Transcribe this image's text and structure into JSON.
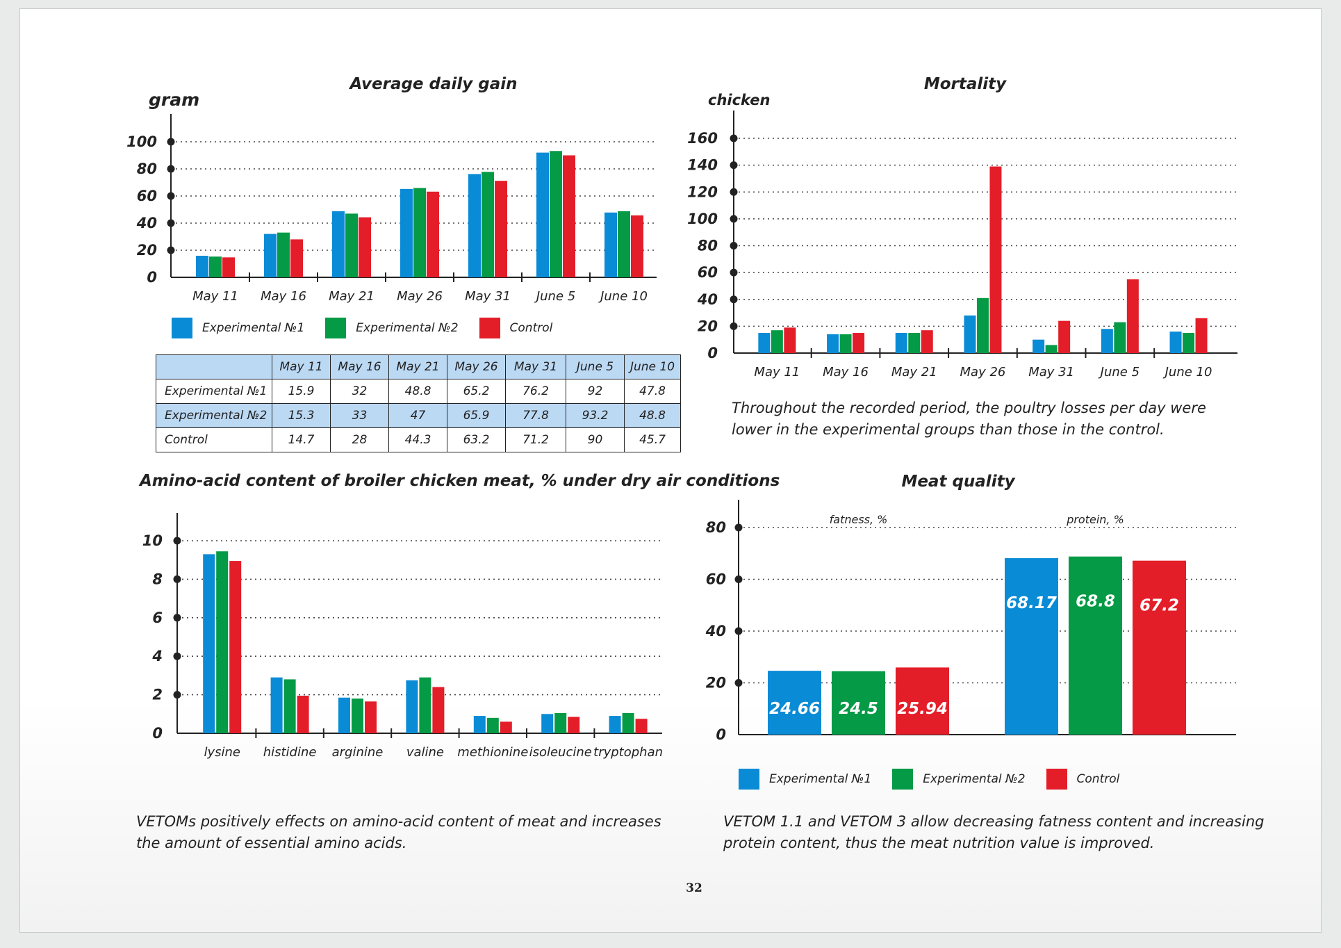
{
  "colors": {
    "exp1": "#0a8bd6",
    "exp2": "#059a45",
    "control": "#e31e29",
    "axis": "#222222",
    "table_shade": "#bcd9f4"
  },
  "series_names": [
    "Experimental №1",
    "Experimental №2",
    "Control"
  ],
  "page_number": "32",
  "chart_data": [
    {
      "type": "bar",
      "title": "Average daily gain",
      "ylabel": "gram",
      "xlabel": "",
      "categories": [
        "May 11",
        "May 16",
        "May 21",
        "May 26",
        "May 31",
        "June 5",
        "June 10"
      ],
      "series": [
        {
          "name": "Experimental №1",
          "values": [
            15.9,
            32,
            48.8,
            65.2,
            76.2,
            92,
            47.8
          ]
        },
        {
          "name": "Experimental №2",
          "values": [
            15.3,
            33,
            47,
            65.9,
            77.8,
            93.2,
            48.8
          ]
        },
        {
          "name": "Control",
          "values": [
            14.7,
            28,
            44.3,
            63.2,
            71.2,
            90,
            45.7
          ]
        }
      ],
      "ylim": [
        0,
        100
      ],
      "yticks": [
        "0",
        "20",
        "40",
        "60",
        "80",
        "100"
      ],
      "grid": true,
      "legend": "bottom"
    },
    {
      "type": "bar",
      "title": "Mortality",
      "ylabel": "chicken",
      "xlabel": "",
      "categories": [
        "May 11",
        "May 16",
        "May 21",
        "May 26",
        "May 31",
        "June 5",
        "June 10"
      ],
      "series": [
        {
          "name": "Experimental №1",
          "values": [
            15,
            14,
            15,
            28,
            10,
            18,
            16
          ]
        },
        {
          "name": "Experimental №2",
          "values": [
            17,
            14,
            15,
            41,
            6,
            23,
            15
          ]
        },
        {
          "name": "Control",
          "values": [
            19,
            15,
            17,
            139,
            24,
            55,
            26
          ]
        }
      ],
      "ylim": [
        0,
        160
      ],
      "yticks": [
        "0",
        "20",
        "40",
        "60",
        "80",
        "100",
        "120",
        "140",
        "160"
      ],
      "grid": true
    },
    {
      "type": "bar",
      "title": "Amino-acid content of broiler chicken meat, % under dry air conditions",
      "ylabel": "",
      "xlabel": "",
      "categories": [
        "lysine",
        "histidine",
        "arginine",
        "valine",
        "methionine",
        "isoleucine",
        "tryptophan"
      ],
      "series": [
        {
          "name": "Experimental №1",
          "values": [
            9.3,
            2.9,
            1.85,
            2.75,
            0.9,
            1.0,
            0.9
          ]
        },
        {
          "name": "Experimental №2",
          "values": [
            9.45,
            2.8,
            1.8,
            2.9,
            0.8,
            1.05,
            1.05
          ]
        },
        {
          "name": "Control",
          "values": [
            8.95,
            1.95,
            1.65,
            2.4,
            0.6,
            0.85,
            0.75
          ]
        }
      ],
      "ylim": [
        0,
        10
      ],
      "yticks": [
        "0",
        "2",
        "4",
        "6",
        "8",
        "10"
      ],
      "grid": true
    },
    {
      "type": "bar",
      "title": "Meat quality",
      "ylabel": "",
      "xlabel": "",
      "categories": [
        "fatness, %",
        "protein, %"
      ],
      "series": [
        {
          "name": "Experimental №1",
          "values": [
            24.66,
            68.17
          ]
        },
        {
          "name": "Experimental №2",
          "values": [
            24.5,
            68.8
          ]
        },
        {
          "name": "Control",
          "values": [
            25.94,
            67.2
          ]
        }
      ],
      "value_labels": [
        [
          "24.66",
          "68.17"
        ],
        [
          "24.5",
          "68.8"
        ],
        [
          "25.94",
          "67.2"
        ]
      ],
      "ylim": [
        0,
        80
      ],
      "yticks": [
        "0",
        "20",
        "40",
        "60",
        "80"
      ],
      "grid": true,
      "legend": "bottom"
    }
  ],
  "table": {
    "headers": [
      "",
      "May 11",
      "May 16",
      "May 21",
      "May 26",
      "May 31",
      "June 5",
      "June 10"
    ],
    "rows": [
      {
        "label": "Experimental №1",
        "cells": [
          "15.9",
          "32",
          "48.8",
          "65.2",
          "76.2",
          "92",
          "47.8"
        ]
      },
      {
        "label": "Experimental №2",
        "cells": [
          "15.3",
          "33",
          "47",
          "65.9",
          "77.8",
          "93.2",
          "48.8"
        ]
      },
      {
        "label": "Control",
        "cells": [
          "14.7",
          "28",
          "44.3",
          "63.2",
          "71.2",
          "90",
          "45.7"
        ]
      }
    ]
  },
  "captions": {
    "mortality": "Throughout the recorded period, the poultry losses per day were lower in the experimental groups than those in the control.",
    "amino": "VETOMs positively effects on amino-acid content of meat and increases the amount of essential amino acids.",
    "quality": "VETOM 1.1 and VETOM 3 allow decreasing fatness content and increasing protein content, thus the meat nutrition value is improved."
  }
}
